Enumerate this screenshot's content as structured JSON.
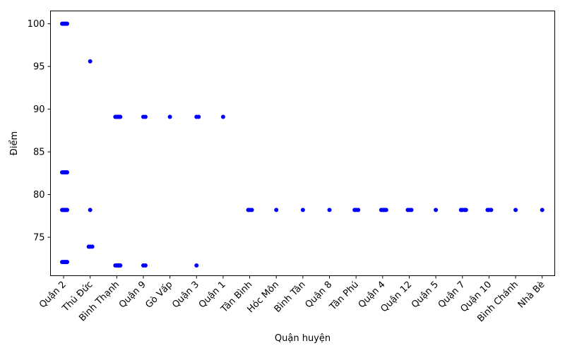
{
  "chart_data": {
    "type": "scatter",
    "xlabel": "Quận huyện",
    "ylabel": "Điểm",
    "ylim": [
      70.5,
      101.5
    ],
    "yticks": [
      75,
      80,
      85,
      90,
      95,
      100
    ],
    "grid": false,
    "legend": "none",
    "marker_color": "#0000ff",
    "categories": [
      "Quận 2",
      "Thủ Đức",
      "Bình Thạnh",
      "Quận 9",
      "Gò Vấp",
      "Quận 3",
      "Quận 1",
      "Tân Bình",
      "Hóc Môn",
      "Bình Tân",
      "Quận 8",
      "Tân Phú",
      "Quận 4",
      "Quận 12",
      "Quận 5",
      "Quận 7",
      "Quận 10",
      "Bình Chánh",
      "Nhà Bè"
    ],
    "points": [
      {
        "x": "Quận 2",
        "y": 100.0
      },
      {
        "x": "Quận 2",
        "y": 100.0
      },
      {
        "x": "Quận 2",
        "y": 100.0
      },
      {
        "x": "Quận 2",
        "y": 100.0
      },
      {
        "x": "Quận 2",
        "y": 100.0
      },
      {
        "x": "Quận 2",
        "y": 100.0
      },
      {
        "x": "Quận 2",
        "y": 82.6
      },
      {
        "x": "Quận 2",
        "y": 82.6
      },
      {
        "x": "Quận 2",
        "y": 82.6
      },
      {
        "x": "Quận 2",
        "y": 82.6
      },
      {
        "x": "Quận 2",
        "y": 82.6
      },
      {
        "x": "Quận 2",
        "y": 82.6
      },
      {
        "x": "Quận 2",
        "y": 78.2
      },
      {
        "x": "Quận 2",
        "y": 78.2
      },
      {
        "x": "Quận 2",
        "y": 78.2
      },
      {
        "x": "Quận 2",
        "y": 78.2
      },
      {
        "x": "Quận 2",
        "y": 78.2
      },
      {
        "x": "Quận 2",
        "y": 78.2
      },
      {
        "x": "Quận 2",
        "y": 72.1
      },
      {
        "x": "Quận 2",
        "y": 72.1
      },
      {
        "x": "Quận 2",
        "y": 72.1
      },
      {
        "x": "Quận 2",
        "y": 72.1
      },
      {
        "x": "Quận 2",
        "y": 72.1
      },
      {
        "x": "Quận 2",
        "y": 72.1
      },
      {
        "x": "Thủ Đức",
        "y": 95.6
      },
      {
        "x": "Thủ Đức",
        "y": 78.2
      },
      {
        "x": "Thủ Đức",
        "y": 73.9
      },
      {
        "x": "Thủ Đức",
        "y": 73.9
      },
      {
        "x": "Thủ Đức",
        "y": 73.9
      },
      {
        "x": "Bình Thạnh",
        "y": 89.1
      },
      {
        "x": "Bình Thạnh",
        "y": 89.1
      },
      {
        "x": "Bình Thạnh",
        "y": 89.1
      },
      {
        "x": "Bình Thạnh",
        "y": 89.1
      },
      {
        "x": "Bình Thạnh",
        "y": 89.1
      },
      {
        "x": "Bình Thạnh",
        "y": 71.7
      },
      {
        "x": "Bình Thạnh",
        "y": 71.7
      },
      {
        "x": "Bình Thạnh",
        "y": 71.7
      },
      {
        "x": "Bình Thạnh",
        "y": 71.7
      },
      {
        "x": "Bình Thạnh",
        "y": 71.7
      },
      {
        "x": "Quận 9",
        "y": 89.1
      },
      {
        "x": "Quận 9",
        "y": 89.1
      },
      {
        "x": "Quận 9",
        "y": 71.7
      },
      {
        "x": "Quận 9",
        "y": 71.7
      },
      {
        "x": "Gò Vấp",
        "y": 89.1
      },
      {
        "x": "Quận 3",
        "y": 89.1
      },
      {
        "x": "Quận 3",
        "y": 89.1
      },
      {
        "x": "Quận 3",
        "y": 71.7
      },
      {
        "x": "Quận 1",
        "y": 89.1
      },
      {
        "x": "Tân Bình",
        "y": 78.2
      },
      {
        "x": "Tân Bình",
        "y": 78.2
      },
      {
        "x": "Tân Bình",
        "y": 78.2
      },
      {
        "x": "Hóc Môn",
        "y": 78.2
      },
      {
        "x": "Bình Tân",
        "y": 78.2
      },
      {
        "x": "Quận 8",
        "y": 78.2
      },
      {
        "x": "Tân Phú",
        "y": 78.2
      },
      {
        "x": "Tân Phú",
        "y": 78.2
      },
      {
        "x": "Tân Phú",
        "y": 78.2
      },
      {
        "x": "Quận 4",
        "y": 78.2
      },
      {
        "x": "Quận 4",
        "y": 78.2
      },
      {
        "x": "Quận 4",
        "y": 78.2
      },
      {
        "x": "Quận 4",
        "y": 78.2
      },
      {
        "x": "Quận 4",
        "y": 78.2
      },
      {
        "x": "Quận 12",
        "y": 78.2
      },
      {
        "x": "Quận 12",
        "y": 78.2
      },
      {
        "x": "Quận 12",
        "y": 78.2
      },
      {
        "x": "Quận 5",
        "y": 78.2
      },
      {
        "x": "Quận 7",
        "y": 78.2
      },
      {
        "x": "Quận 7",
        "y": 78.2
      },
      {
        "x": "Quận 7",
        "y": 78.2
      },
      {
        "x": "Quận 7",
        "y": 78.2
      },
      {
        "x": "Quận 10",
        "y": 78.2
      },
      {
        "x": "Quận 10",
        "y": 78.2
      },
      {
        "x": "Quận 10",
        "y": 78.2
      },
      {
        "x": "Bình Chánh",
        "y": 78.2
      },
      {
        "x": "Nhà Bè",
        "y": 78.2
      }
    ]
  }
}
